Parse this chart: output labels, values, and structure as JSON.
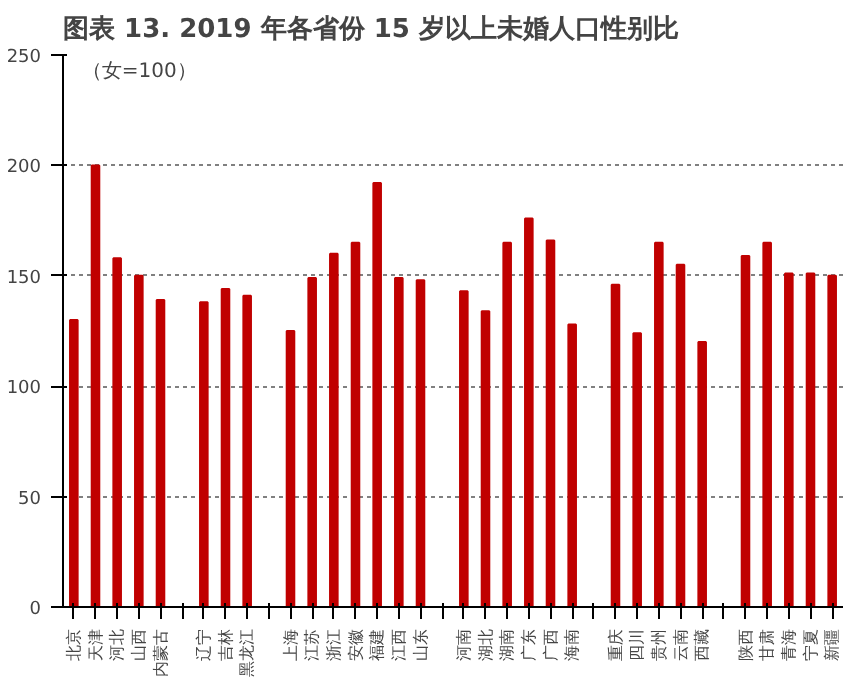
{
  "chart_data": {
    "type": "bar",
    "title": "图表 13. 2019 年各省份 15 岁以上未婚人口性别比",
    "annotations": [
      "（女=100）"
    ],
    "categories": [
      "北京",
      "天津",
      "河北",
      "山西",
      "内蒙古",
      null,
      "辽宁",
      "吉林",
      "黑龙江",
      null,
      "上海",
      "江苏",
      "浙江",
      "安徽",
      "福建",
      "江西",
      "山东",
      null,
      "河南",
      "湖北",
      "湖南",
      "广东",
      "广西",
      "海南",
      null,
      "重庆",
      "四川",
      "贵州",
      "云南",
      "西藏",
      null,
      "陕西",
      "甘肃",
      "青海",
      "宁夏",
      "新疆"
    ],
    "values": [
      130,
      200,
      158,
      150,
      139,
      null,
      138,
      144,
      141,
      null,
      125,
      149,
      160,
      165,
      192,
      149,
      148,
      null,
      143,
      134,
      165,
      176,
      166,
      128,
      null,
      146,
      124,
      165,
      155,
      120,
      null,
      159,
      165,
      151,
      151,
      150
    ],
    "color": "#c00000",
    "ylim": [
      0,
      250
    ],
    "yticks": [
      0,
      50,
      100,
      150,
      200,
      250
    ],
    "grid": "y"
  }
}
